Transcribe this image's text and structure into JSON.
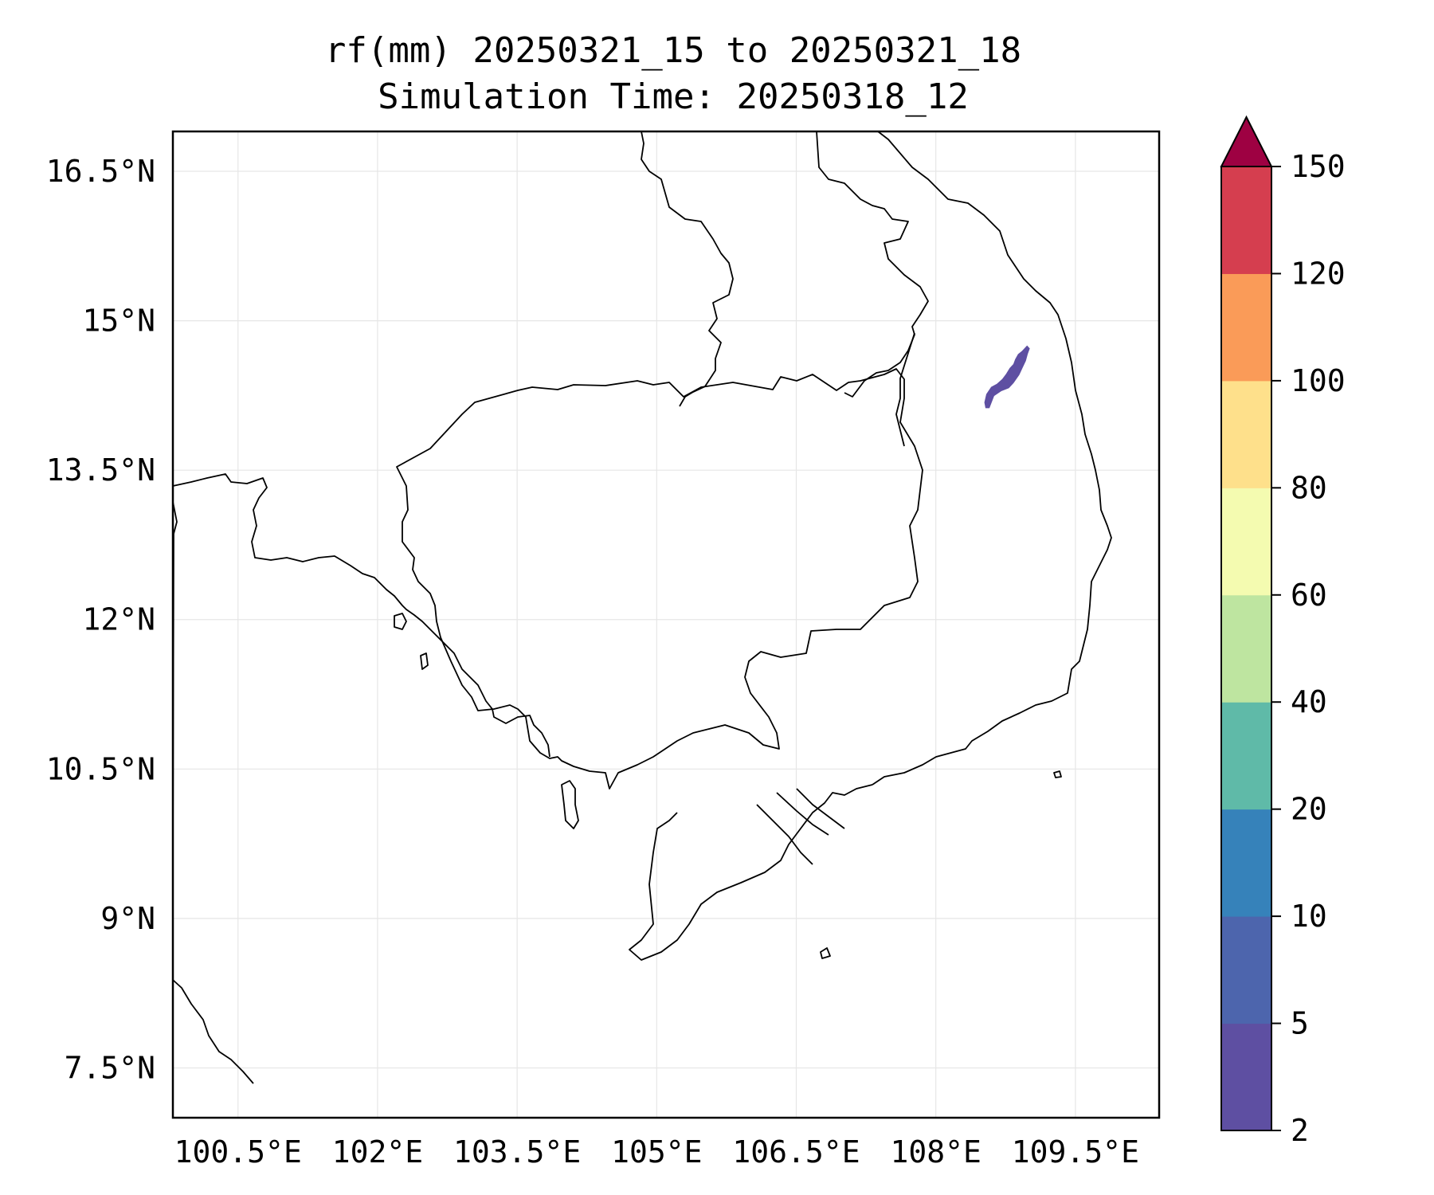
{
  "title": {
    "line1": "rf(mm) 20250321_15 to 20250321_18",
    "line2": "Simulation Time: 20250318_12"
  },
  "map": {
    "lon_range": [
      99.8,
      110.4
    ],
    "lat_range": [
      7.0,
      16.9
    ],
    "lon_ticks": [
      {
        "value": 100.5,
        "label": "100.5°E"
      },
      {
        "value": 102.0,
        "label": "102°E"
      },
      {
        "value": 103.5,
        "label": "103.5°E"
      },
      {
        "value": 105.0,
        "label": "105°E"
      },
      {
        "value": 106.5,
        "label": "106.5°E"
      },
      {
        "value": 108.0,
        "label": "108°E"
      },
      {
        "value": 109.5,
        "label": "109.5°E"
      }
    ],
    "lat_ticks": [
      {
        "value": 16.5,
        "label": "16.5°N"
      },
      {
        "value": 15.0,
        "label": "15°N"
      },
      {
        "value": 13.5,
        "label": "13.5°N"
      },
      {
        "value": 12.0,
        "label": "12°N"
      },
      {
        "value": 10.5,
        "label": "10.5°N"
      },
      {
        "value": 9.0,
        "label": "9°N"
      },
      {
        "value": 7.5,
        "label": "7.5°N"
      }
    ],
    "grid": true,
    "features": [
      {
        "name": "rainfall-patch",
        "rainfall_class": "2-5 mm",
        "color": "#5e4fa2",
        "polygon_lonlat": [
          [
            108.57,
            14.13
          ],
          [
            108.62,
            14.25
          ],
          [
            108.7,
            14.3
          ],
          [
            108.78,
            14.33
          ],
          [
            108.83,
            14.38
          ],
          [
            108.89,
            14.46
          ],
          [
            108.92,
            14.52
          ],
          [
            108.96,
            14.6
          ],
          [
            108.98,
            14.67
          ],
          [
            109.0,
            14.72
          ],
          [
            108.98,
            14.74
          ],
          [
            108.93,
            14.69
          ],
          [
            108.89,
            14.66
          ],
          [
            108.86,
            14.61
          ],
          [
            108.84,
            14.56
          ],
          [
            108.8,
            14.52
          ],
          [
            108.76,
            14.46
          ],
          [
            108.72,
            14.41
          ],
          [
            108.66,
            14.36
          ],
          [
            108.6,
            14.33
          ],
          [
            108.55,
            14.26
          ],
          [
            108.53,
            14.18
          ],
          [
            108.54,
            14.13
          ]
        ]
      }
    ]
  },
  "colorbar": {
    "levels": [
      "2",
      "5",
      "10",
      "20",
      "40",
      "60",
      "80",
      "100",
      "120",
      "150"
    ],
    "colors": [
      "#5e4fa2",
      "#4d65ad",
      "#3682ba",
      "#5fbaa8",
      "#bee5a0",
      "#f4fbb0",
      "#fee08b",
      "#fa9b58",
      "#d53e4f"
    ],
    "extend_color": "#9e0142",
    "extend": "max"
  }
}
